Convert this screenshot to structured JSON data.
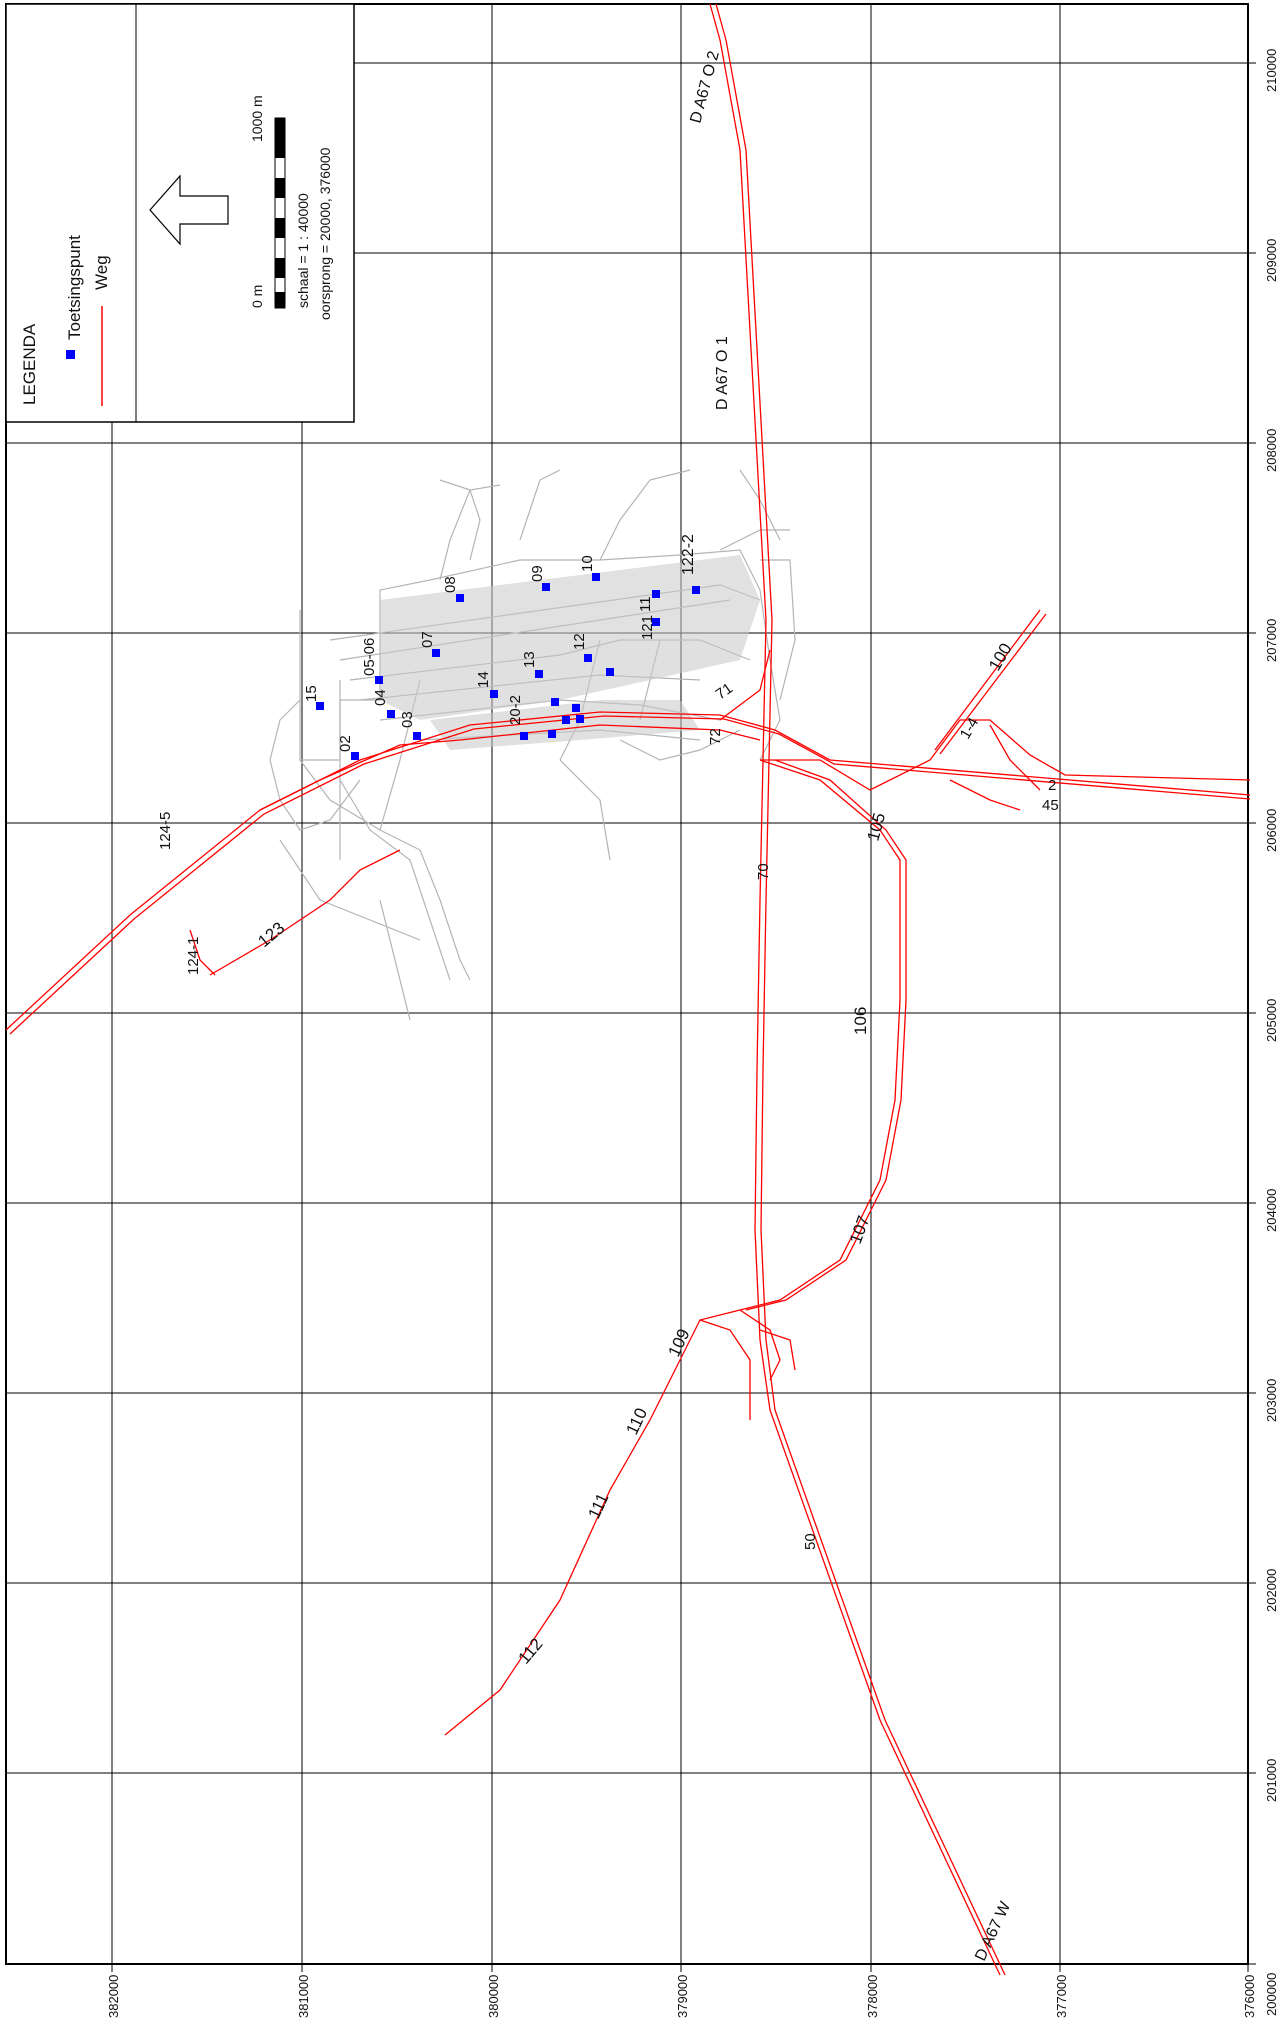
{
  "legend": {
    "title": "LEGENDA",
    "items": [
      {
        "label": "Toetsingspunt",
        "symbol": "blue-square-marker",
        "color": "#0000ff"
      },
      {
        "label": "Weg",
        "symbol": "red-line",
        "color": "#ff0000"
      }
    ],
    "scale_start": "0 m",
    "scale_end": "1000 m",
    "scale_text": "schaal = 1 : 40000",
    "origin_text": "oorsprong = 20000, 376000",
    "north_arrow": "north-arrow-icon"
  },
  "axis": {
    "bottom_ticks": [
      "382000",
      "381000",
      "380000",
      "379000",
      "378000",
      "377000",
      "376000"
    ],
    "right_ticks": [
      "210000",
      "209000",
      "208000",
      "207000",
      "206000",
      "205000",
      "204000",
      "203000",
      "202000",
      "201000",
      "200000"
    ]
  },
  "colors": {
    "road": "#ff0000",
    "point": "#0000ff",
    "background_map": "#b4b4b4",
    "grid": "#000000"
  },
  "road_labels": [
    "D A67 O 2",
    "D A67 O 1",
    "D A67 W",
    "100",
    "105",
    "106",
    "107",
    "109",
    "110",
    "111",
    "112",
    "123",
    "122-2",
    "124-1",
    "124-5",
    "1-4",
    "2",
    "45",
    "71",
    "72",
    "50",
    "70"
  ],
  "points": [
    "15",
    "02",
    "04",
    "05-06",
    "03",
    "07",
    "08",
    "09",
    "10",
    "11",
    "12",
    "13",
    "14",
    "20-2",
    "121"
  ]
}
